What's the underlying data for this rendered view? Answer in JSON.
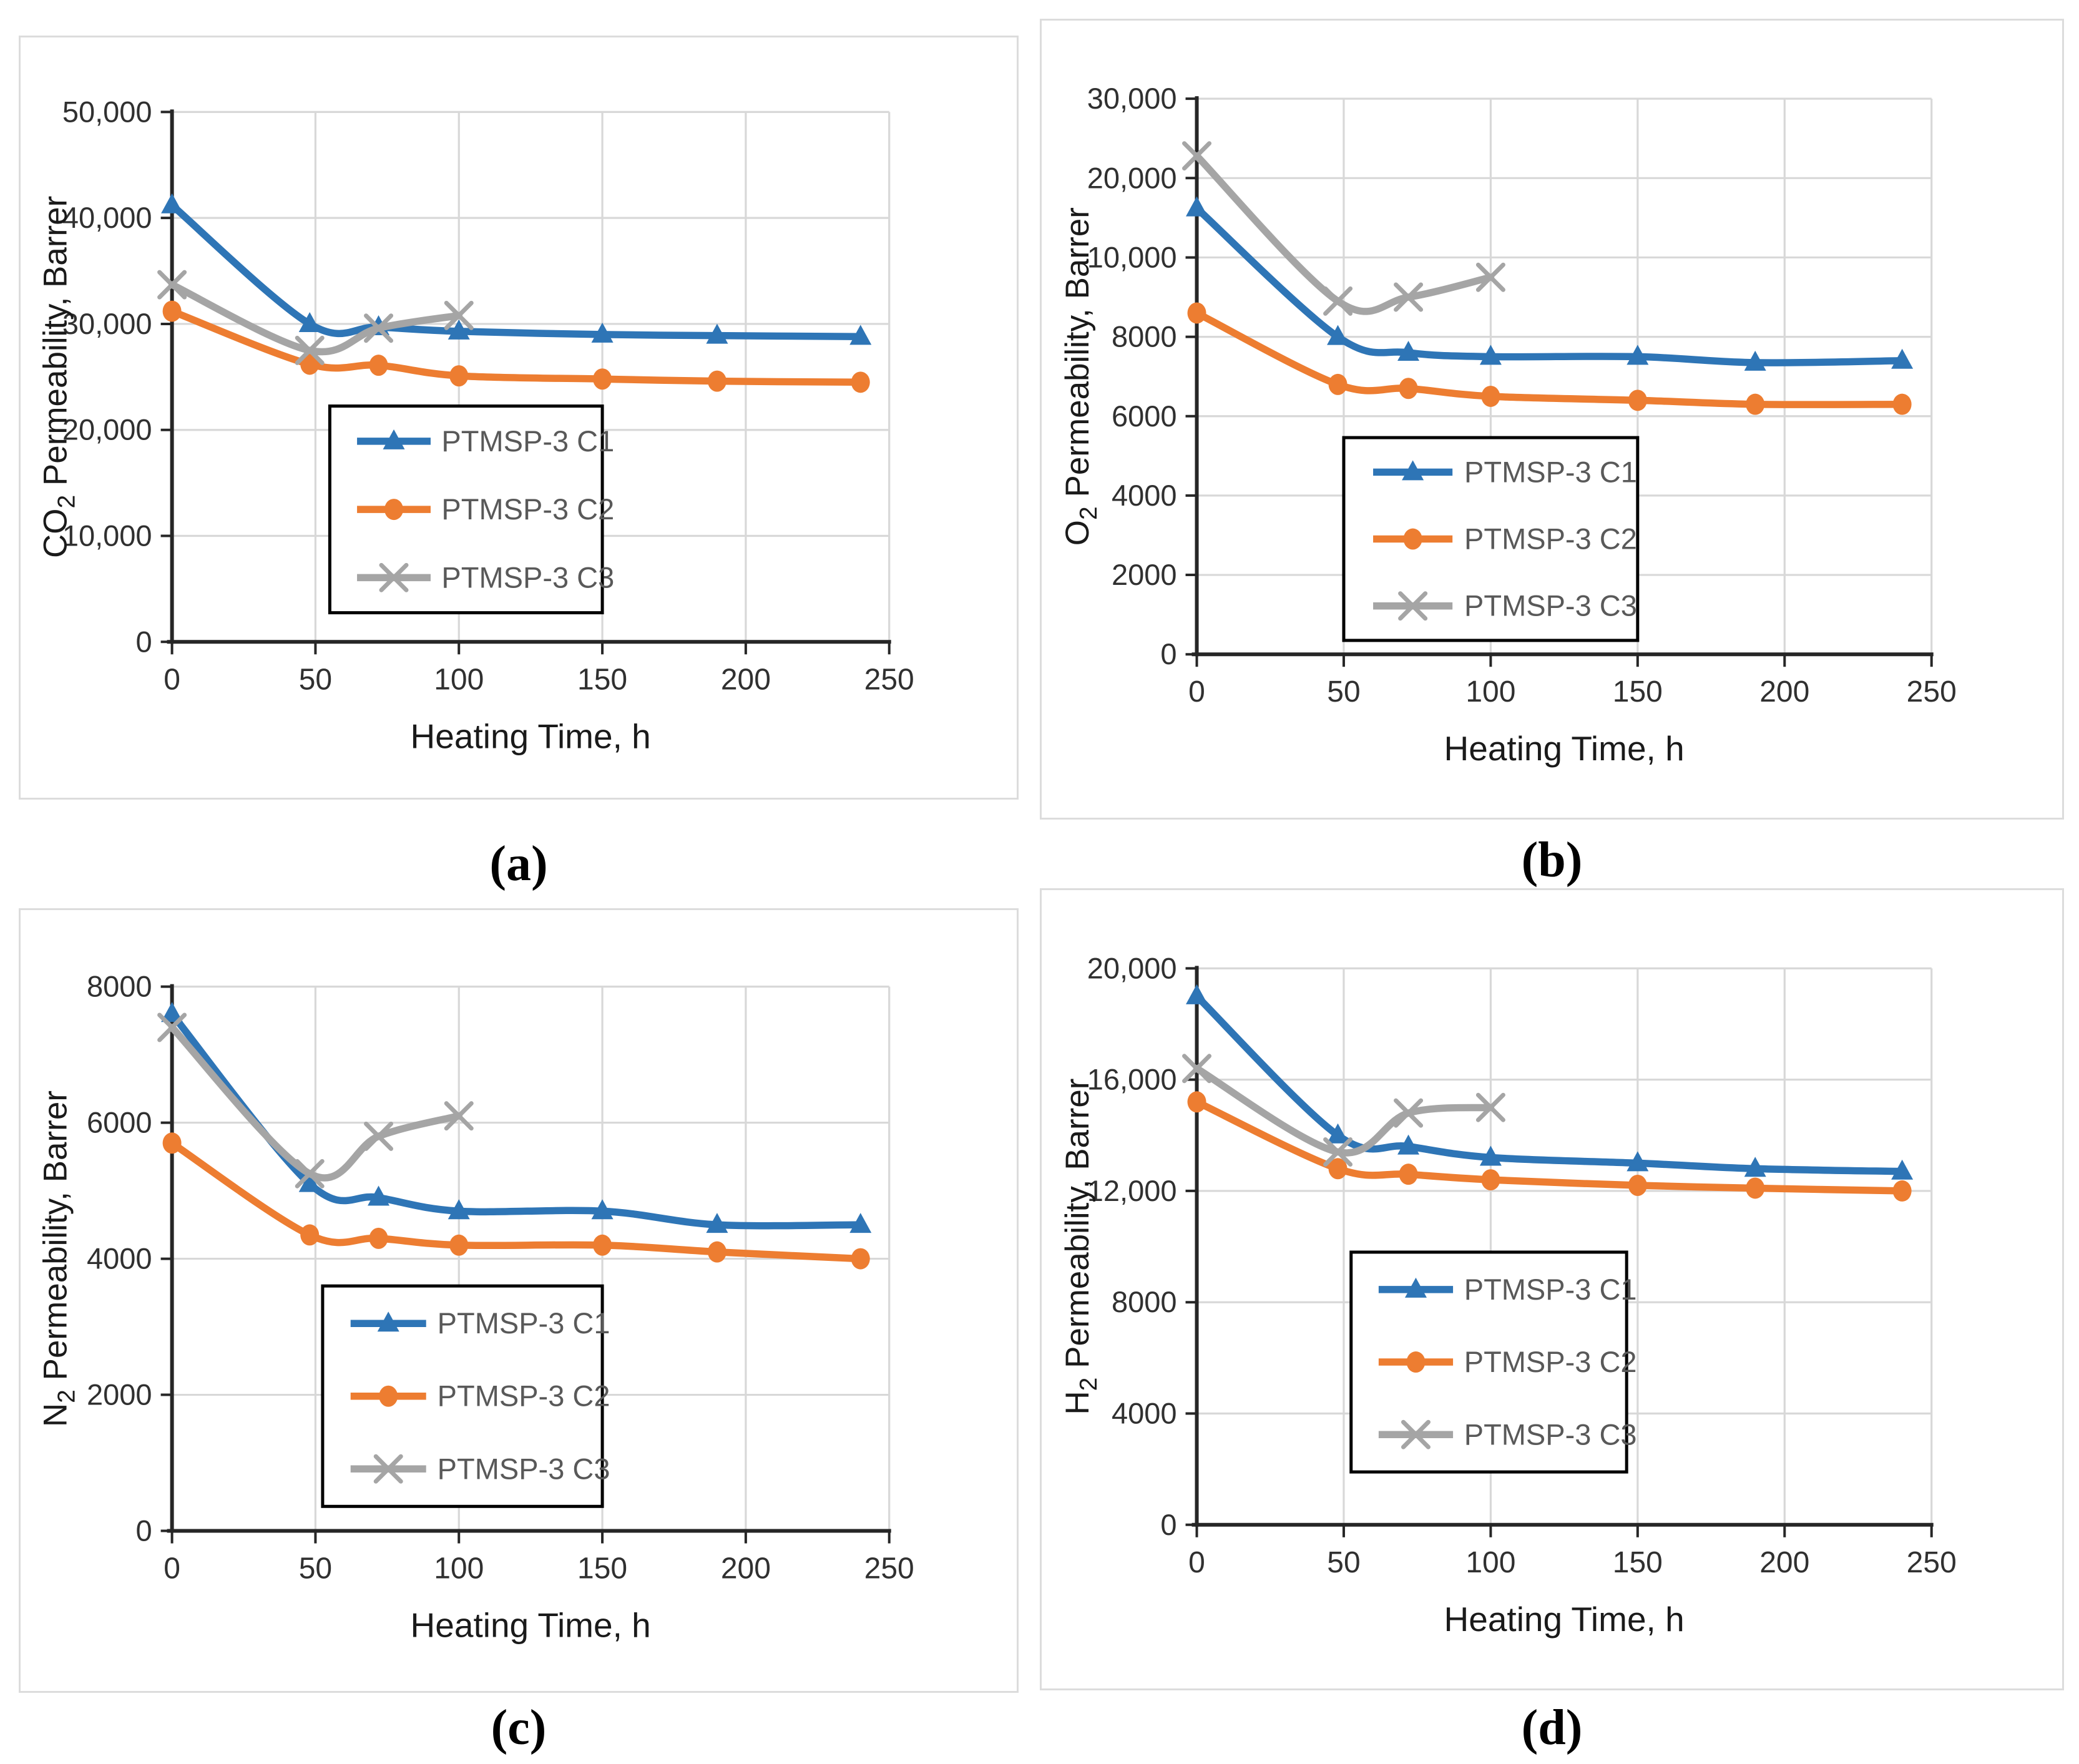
{
  "figure": {
    "description_captions": [
      "(a)",
      "(b)",
      "(c)",
      "(d)"
    ]
  },
  "colors": {
    "series_c1": "#2E75B6",
    "series_c2": "#ED7D31",
    "series_c3": "#A5A5A5",
    "gridline": "#D8D8D8",
    "axis": "#262626",
    "tick_text": "#303030",
    "title_text": "#1a1a1a",
    "legend_text": "#595959",
    "legend_border": "#000000",
    "panel_border": "#dcdcdc"
  },
  "chart_data": [
    {
      "id": "a",
      "caption": "(a)",
      "type": "line",
      "xlabel": "Heating Time, h",
      "ylabel": "CO2 Permeability, Barrer",
      "ylabel_parts": [
        "CO",
        "2",
        " Permeability, Barrer"
      ],
      "xlim": [
        0,
        250
      ],
      "x_ticks": [
        0,
        50,
        100,
        150,
        200,
        250
      ],
      "x_tick_labels": [
        "0",
        "50",
        "100",
        "150",
        "200",
        "250"
      ],
      "y_tick_values": [
        0,
        10000,
        20000,
        30000,
        40000,
        50000
      ],
      "y_tick_labels": [
        "0",
        "10,000",
        "20,000",
        "30,000",
        "40,000",
        "50,000"
      ],
      "grid": true,
      "legend_position": "inside lower-middle",
      "series": [
        {
          "name": "PTMSP-3 C1",
          "color": "#2E75B6",
          "marker": "triangle",
          "x": [
            0,
            48,
            72,
            100,
            150,
            190,
            240
          ],
          "y": [
            41200,
            30000,
            29700,
            29300,
            29000,
            28900,
            28800
          ]
        },
        {
          "name": "PTMSP-3 C2",
          "color": "#ED7D31",
          "marker": "circle",
          "x": [
            0,
            48,
            72,
            100,
            150,
            190,
            240
          ],
          "y": [
            31200,
            26200,
            26100,
            25100,
            24800,
            24600,
            24500
          ]
        },
        {
          "name": "PTMSP-3 C3",
          "color": "#A5A5A5",
          "marker": "x",
          "x": [
            0,
            48,
            72,
            100
          ],
          "y": [
            33700,
            27500,
            29600,
            30800
          ]
        }
      ]
    },
    {
      "id": "b",
      "caption": "(b)",
      "type": "line",
      "xlabel": "Heating Time, h",
      "ylabel": "O2 Permeability, Barrer",
      "ylabel_parts": [
        "O",
        "2",
        " Permeability, Barrer"
      ],
      "xlim": [
        0,
        250
      ],
      "x_ticks": [
        0,
        50,
        100,
        150,
        200,
        250
      ],
      "x_tick_labels": [
        "0",
        "50",
        "100",
        "150",
        "200",
        "250"
      ],
      "y_tick_values": [
        0,
        2000,
        4000,
        6000,
        8000,
        10000,
        20000,
        30000
      ],
      "y_tick_labels": [
        "0",
        "2000",
        "4000",
        "6000",
        "8000",
        "10,000",
        "20,000",
        "30,000"
      ],
      "grid": true,
      "legend_position": "inside lower-middle",
      "series": [
        {
          "name": "PTMSP-3 C1",
          "color": "#2E75B6",
          "marker": "triangle",
          "x": [
            0,
            48,
            72,
            100,
            150,
            190,
            240
          ],
          "y": [
            16200,
            8000,
            7600,
            7500,
            7500,
            7350,
            7400
          ]
        },
        {
          "name": "PTMSP-3 C2",
          "color": "#ED7D31",
          "marker": "circle",
          "x": [
            0,
            48,
            72,
            100,
            150,
            190,
            240
          ],
          "y": [
            8600,
            6800,
            6700,
            6500,
            6400,
            6300,
            6300
          ]
        },
        {
          "name": "PTMSP-3 C3",
          "color": "#A5A5A5",
          "marker": "x",
          "x": [
            0,
            48,
            72,
            100
          ],
          "y": [
            22800,
            8900,
            9000,
            9500
          ]
        }
      ]
    },
    {
      "id": "c",
      "caption": "(c)",
      "type": "line",
      "xlabel": "Heating Time, h",
      "ylabel": "N2 Permeability, Barrer",
      "ylabel_parts": [
        "N",
        "2",
        " Permeability, Barrer"
      ],
      "xlim": [
        0,
        250
      ],
      "x_ticks": [
        0,
        50,
        100,
        150,
        200,
        250
      ],
      "x_tick_labels": [
        "0",
        "50",
        "100",
        "150",
        "200",
        "250"
      ],
      "y_tick_values": [
        0,
        2000,
        4000,
        6000,
        8000
      ],
      "y_tick_labels": [
        "0",
        "2000",
        "4000",
        "6000",
        "8000"
      ],
      "grid": true,
      "legend_position": "inside lower-middle",
      "series": [
        {
          "name": "PTMSP-3 C1",
          "color": "#2E75B6",
          "marker": "triangle",
          "x": [
            0,
            48,
            72,
            100,
            150,
            190,
            240
          ],
          "y": [
            7600,
            5100,
            4900,
            4700,
            4700,
            4500,
            4500
          ]
        },
        {
          "name": "PTMSP-3 C2",
          "color": "#ED7D31",
          "marker": "circle",
          "x": [
            0,
            48,
            72,
            100,
            150,
            190,
            240
          ],
          "y": [
            5700,
            4350,
            4300,
            4200,
            4200,
            4100,
            4000
          ]
        },
        {
          "name": "PTMSP-3 C3",
          "color": "#A5A5A5",
          "marker": "x",
          "x": [
            0,
            48,
            72,
            100
          ],
          "y": [
            7400,
            5250,
            5800,
            6100
          ]
        }
      ]
    },
    {
      "id": "d",
      "caption": "(d)",
      "type": "line",
      "xlabel": "Heating Time, h",
      "ylabel": "H2 Permeability, Barrer",
      "ylabel_parts": [
        "H",
        "2",
        " Permeability, Barrer"
      ],
      "xlim": [
        0,
        250
      ],
      "x_ticks": [
        0,
        50,
        100,
        150,
        200,
        250
      ],
      "x_tick_labels": [
        "0",
        "50",
        "100",
        "150",
        "200",
        "250"
      ],
      "y_tick_values": [
        0,
        4000,
        8000,
        12000,
        16000,
        20000
      ],
      "y_tick_labels": [
        "0",
        "4000",
        "8000",
        "12,000",
        "16,000",
        "20,000"
      ],
      "grid": true,
      "legend_position": "inside lower-middle",
      "series": [
        {
          "name": "PTMSP-3 C1",
          "color": "#2E75B6",
          "marker": "triangle",
          "x": [
            0,
            48,
            72,
            100,
            150,
            190,
            240
          ],
          "y": [
            19000,
            14000,
            13600,
            13200,
            13000,
            12800,
            12700
          ]
        },
        {
          "name": "PTMSP-3 C2",
          "color": "#ED7D31",
          "marker": "circle",
          "x": [
            0,
            48,
            72,
            100,
            150,
            190,
            240
          ],
          "y": [
            15200,
            12800,
            12600,
            12400,
            12200,
            12100,
            12000
          ]
        },
        {
          "name": "PTMSP-3 C3",
          "color": "#A5A5A5",
          "marker": "x",
          "x": [
            0,
            48,
            72,
            100
          ],
          "y": [
            16400,
            13400,
            14800,
            15000
          ]
        }
      ]
    }
  ]
}
